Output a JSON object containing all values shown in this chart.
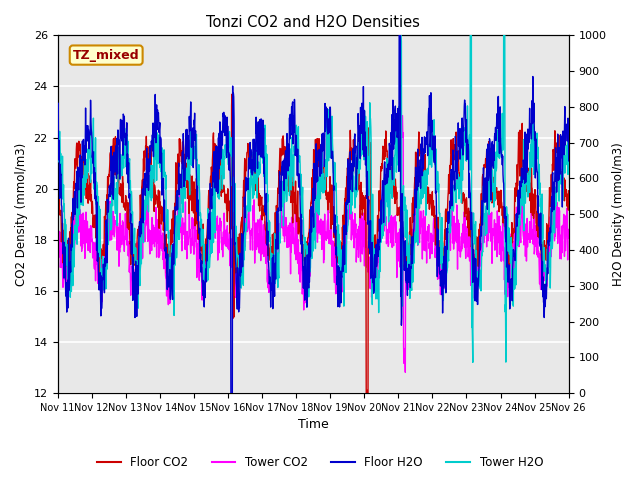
{
  "title": "Tonzi CO2 and H2O Densities",
  "xlabel": "Time",
  "ylabel_left": "CO2 Density (mmol/m3)",
  "ylabel_right": "H2O Density (mmol/m3)",
  "ylim_left": [
    12,
    26
  ],
  "ylim_right": [
    0,
    1000
  ],
  "yticks_left": [
    12,
    14,
    16,
    18,
    20,
    22,
    24,
    26
  ],
  "yticks_right": [
    0,
    100,
    200,
    300,
    400,
    500,
    600,
    700,
    800,
    900,
    1000
  ],
  "xtick_labels": [
    "Nov 11",
    "Nov 12",
    "Nov 13",
    "Nov 14",
    "Nov 15",
    "Nov 16",
    "Nov 17",
    "Nov 18",
    "Nov 19",
    "Nov 20",
    "Nov 21",
    "Nov 22",
    "Nov 23",
    "Nov 24",
    "Nov 25",
    "Nov 26"
  ],
  "annotation_text": "TZ_mixed",
  "colors": {
    "floor_co2": "#cc0000",
    "tower_co2": "#ff00ff",
    "floor_h2o": "#0000cc",
    "tower_h2o": "#00cccc"
  },
  "legend_labels": [
    "Floor CO2",
    "Tower CO2",
    "Floor H2O",
    "Tower H2O"
  ],
  "background_color": "#ffffff",
  "plot_bg_color": "#e8e8e8",
  "grid_color": "#ffffff"
}
